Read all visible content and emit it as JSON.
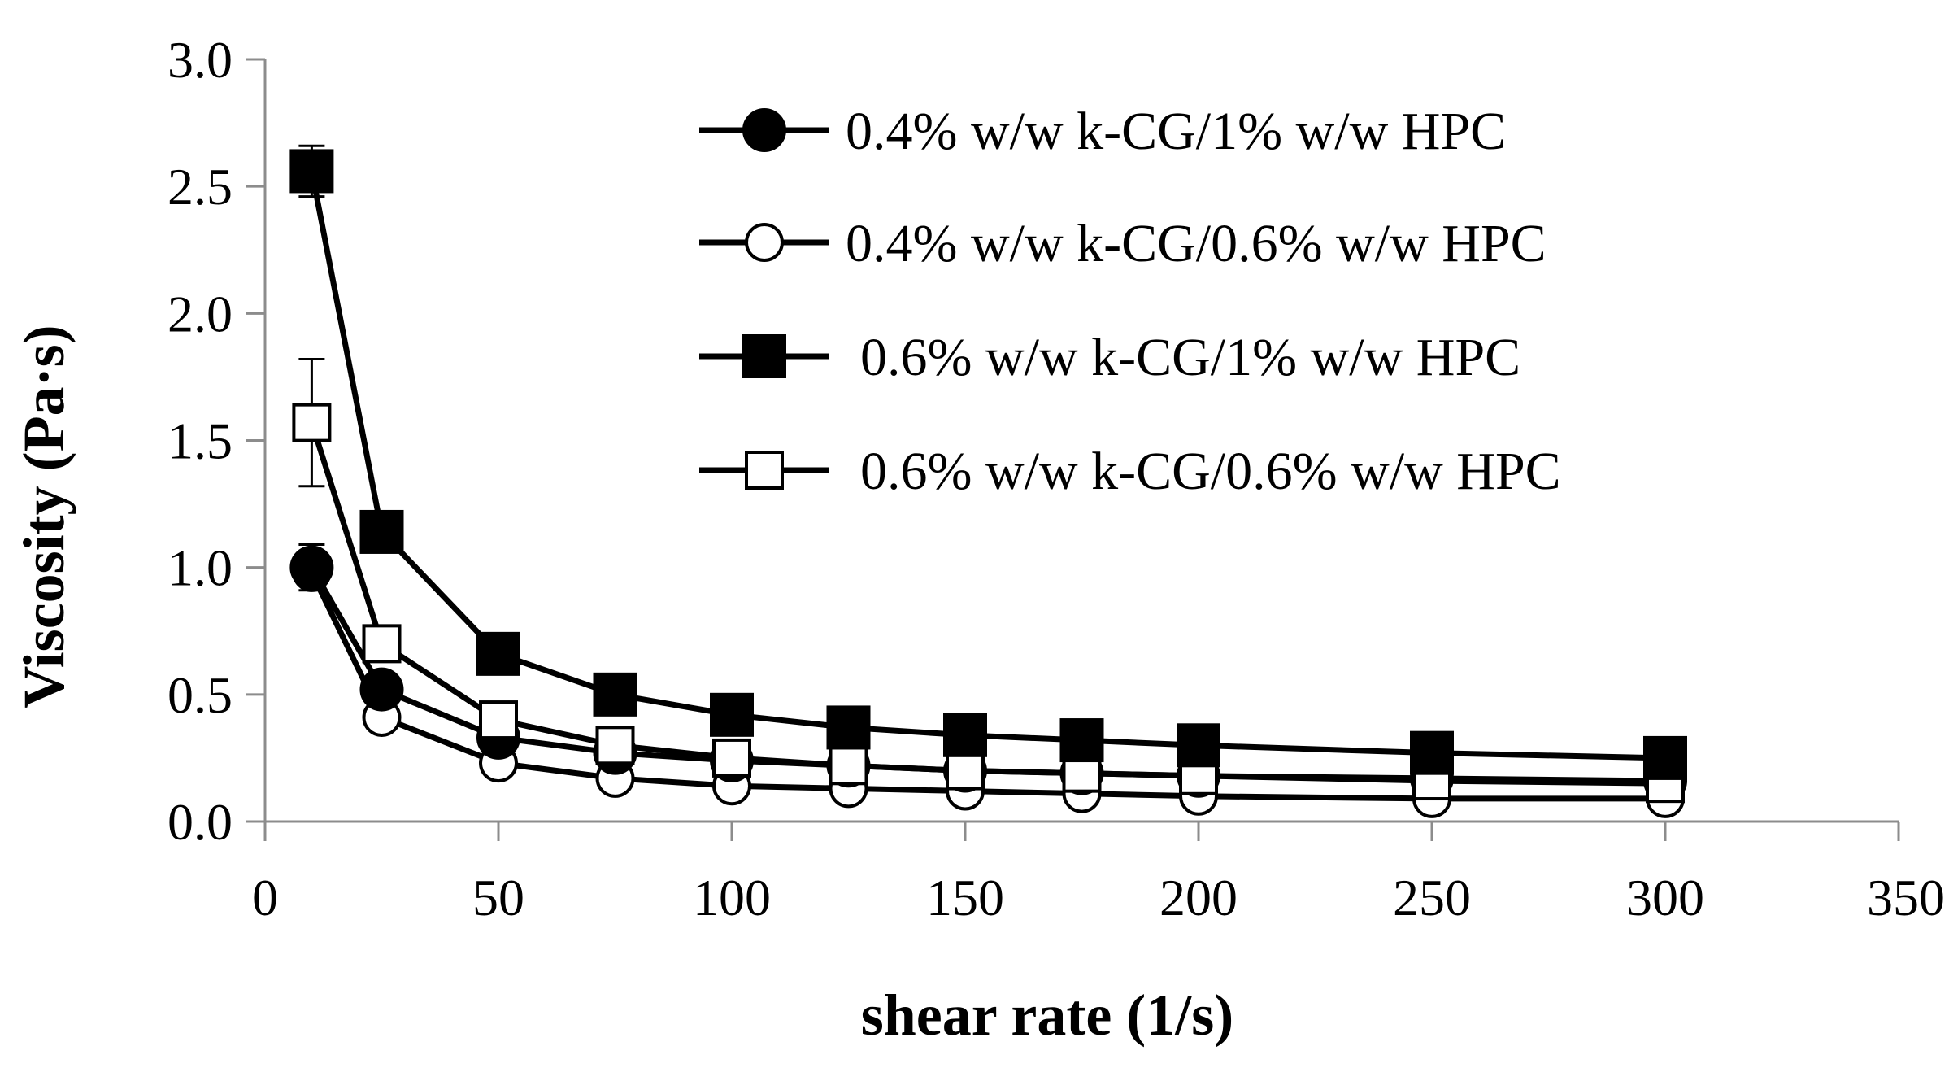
{
  "chart_data": {
    "type": "line",
    "title": "",
    "xlabel": "shear rate (1/s)",
    "ylabel": "Viscosity (Pa·s)",
    "xlim": [
      0,
      350
    ],
    "ylim": [
      0,
      3.0
    ],
    "x_ticks": [
      0,
      50,
      100,
      150,
      200,
      250,
      300,
      350
    ],
    "y_ticks": [
      0,
      0.5,
      1.0,
      1.5,
      2.0,
      2.5,
      3.0
    ],
    "x_tick_labels": [
      "0",
      "50",
      "100",
      "150",
      "200",
      "250",
      "300",
      "350"
    ],
    "y_tick_labels": [
      "0.0",
      "0.5",
      "1.0",
      "1.5",
      "2.0",
      "2.5",
      "3.0"
    ],
    "grid": false,
    "legend_position": "top-right",
    "x": [
      10,
      25,
      50,
      75,
      100,
      125,
      150,
      175,
      200,
      250,
      300
    ],
    "series": [
      {
        "name": "0.4% w/w k-CG/1% w/w HPC",
        "marker": "filled-circle",
        "values": [
          1.0,
          0.52,
          0.33,
          0.27,
          0.24,
          0.22,
          0.2,
          0.19,
          0.18,
          0.17,
          0.16
        ],
        "errors": [
          0.09,
          0.02,
          0.02,
          0.01,
          0.01,
          0.01,
          0.01,
          0.01,
          0.01,
          0.01,
          0.01
        ]
      },
      {
        "name": "0.4% w/w k-CG/0.6% w/w HPC",
        "marker": "open-circle",
        "values": [
          0.98,
          0.41,
          0.23,
          0.17,
          0.14,
          0.13,
          0.12,
          0.11,
          0.1,
          0.09,
          0.09
        ],
        "errors": [
          0.03,
          0.02,
          0.01,
          0.01,
          0.01,
          0.01,
          0.01,
          0.01,
          0.01,
          0.01,
          0.01
        ]
      },
      {
        "name": "0.6% w/w k-CG/1% w/w HPC",
        "marker": "filled-square",
        "values": [
          2.56,
          1.14,
          0.66,
          0.5,
          0.42,
          0.37,
          0.34,
          0.32,
          0.3,
          0.27,
          0.25
        ],
        "errors": [
          0.1,
          0.03,
          0.02,
          0.01,
          0.01,
          0.01,
          0.01,
          0.01,
          0.01,
          0.01,
          0.01
        ]
      },
      {
        "name": "0.6% w/w k-CG/0.6% w/w HPC",
        "marker": "open-square",
        "values": [
          1.57,
          0.7,
          0.4,
          0.3,
          0.25,
          0.22,
          0.2,
          0.19,
          0.18,
          0.16,
          0.15
        ],
        "errors": [
          0.25,
          0.04,
          0.03,
          0.02,
          0.01,
          0.01,
          0.01,
          0.01,
          0.01,
          0.01,
          0.01
        ]
      }
    ]
  }
}
